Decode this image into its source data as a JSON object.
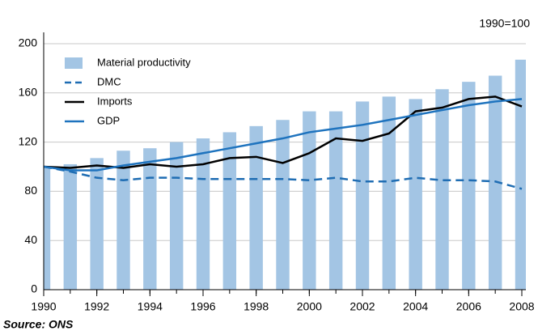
{
  "chart_data": {
    "type": "bar-line",
    "annotation": "1990=100",
    "source": "Source: ONS",
    "x": [
      1990,
      1991,
      1992,
      1993,
      1994,
      1995,
      1996,
      1997,
      1998,
      1999,
      2000,
      2001,
      2002,
      2003,
      2004,
      2005,
      2006,
      2007,
      2008
    ],
    "xlim": [
      1990,
      2008
    ],
    "xticks": [
      1990,
      1992,
      1994,
      1996,
      1998,
      2000,
      2002,
      2004,
      2006,
      2008
    ],
    "ylim": [
      0,
      200
    ],
    "yticks": [
      0,
      40,
      80,
      120,
      160,
      200
    ],
    "grid": true,
    "legend": "upper left",
    "series": [
      {
        "name": "Material productivity",
        "type": "bar",
        "color": "#a3c5e4",
        "values": [
          100,
          102,
          107,
          113,
          115,
          120,
          123,
          128,
          133,
          138,
          145,
          145,
          153,
          157,
          155,
          163,
          169,
          174,
          187
        ]
      },
      {
        "name": "DMC",
        "type": "line",
        "style": "dashed",
        "color": "#1f6db3",
        "values": [
          100,
          96,
          91,
          89,
          91,
          91,
          90,
          90,
          90,
          90,
          89,
          91,
          88,
          88,
          91,
          89,
          89,
          88,
          82
        ]
      },
      {
        "name": "Imports",
        "type": "line",
        "style": "solid",
        "color": "#000000",
        "values": [
          100,
          99,
          101,
          99,
          102,
          100,
          102,
          107,
          108,
          103,
          111,
          123,
          121,
          127,
          145,
          148,
          155,
          157,
          149
        ]
      },
      {
        "name": "GDP",
        "type": "line",
        "style": "solid",
        "color": "#1e73be",
        "values": [
          100,
          97,
          97,
          101,
          104,
          107,
          111,
          115,
          119,
          123,
          128,
          131,
          134,
          138,
          142,
          146,
          150,
          153,
          155
        ]
      }
    ]
  }
}
